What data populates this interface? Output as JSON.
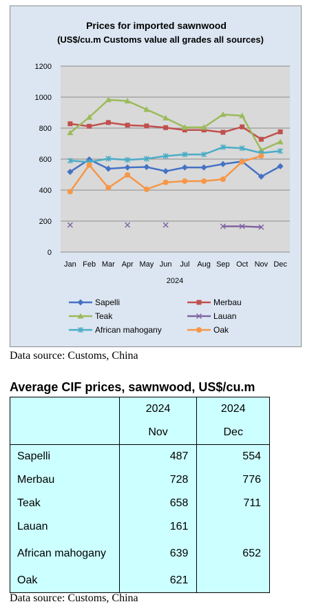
{
  "chart_data": {
    "type": "line",
    "title": "Prices for imported sawnwood",
    "subtitle": "(US$/cu.m Customs value all grades all sources)",
    "xlabel": "2024",
    "ylabel": "",
    "categories": [
      "Jan",
      "Feb",
      "Mar",
      "Apr",
      "May",
      "Jun",
      "Jul",
      "Aug",
      "Sep",
      "Oct",
      "Nov",
      "Dec"
    ],
    "ylim": [
      0,
      1200
    ],
    "yticks": [
      "0",
      "200",
      "400",
      "600",
      "800",
      "1000",
      "1200"
    ],
    "grid": true,
    "legend_position": "bottom",
    "series": [
      {
        "name": "Sapelli",
        "color": "#4472c4",
        "marker": "diamond",
        "values": [
          518,
          598,
          538,
          546,
          549,
          522,
          546,
          546,
          568,
          585,
          487,
          554
        ]
      },
      {
        "name": "Merbau",
        "color": "#c0504d",
        "marker": "square",
        "values": [
          828,
          812,
          836,
          819,
          814,
          803,
          788,
          788,
          773,
          808,
          728,
          776
        ]
      },
      {
        "name": "Teak",
        "color": "#9bbb59",
        "marker": "triangle",
        "values": [
          770,
          870,
          983,
          975,
          920,
          865,
          805,
          805,
          888,
          880,
          658,
          711
        ]
      },
      {
        "name": "Lauan",
        "color": "#8064a2",
        "marker": "x",
        "values": [
          175,
          null,
          null,
          175,
          null,
          175,
          null,
          null,
          166,
          166,
          161,
          null
        ]
      },
      {
        "name": "African mahogany",
        "color": "#4bacc6",
        "marker": "star",
        "values": [
          590,
          581,
          603,
          595,
          602,
          620,
          630,
          630,
          677,
          670,
          639,
          652
        ]
      },
      {
        "name": "Oak",
        "color": "#f79646",
        "marker": "circle",
        "values": [
          390,
          562,
          415,
          498,
          405,
          450,
          458,
          458,
          470,
          583,
          621,
          null
        ]
      }
    ]
  },
  "chart_source": "Data source: Customs, China",
  "table": {
    "title": "Average CIF prices, sawnwood, US$/cu.m",
    "header_years": [
      "2024",
      "2024"
    ],
    "header_months": [
      "Nov",
      "Dec"
    ],
    "rows": [
      {
        "label": "Sapelli",
        "nov": "487",
        "dec": "554"
      },
      {
        "label": "Merbau",
        "nov": "728",
        "dec": "776"
      },
      {
        "label": "Teak",
        "nov": "658",
        "dec": "711"
      },
      {
        "label": "Lauan",
        "nov": "161",
        "dec": ""
      },
      {
        "label": "African mahogany",
        "nov": "639",
        "dec": "652"
      },
      {
        "label": "Oak",
        "nov": "621",
        "dec": ""
      }
    ]
  },
  "table_source": "Data source: Customs, China"
}
